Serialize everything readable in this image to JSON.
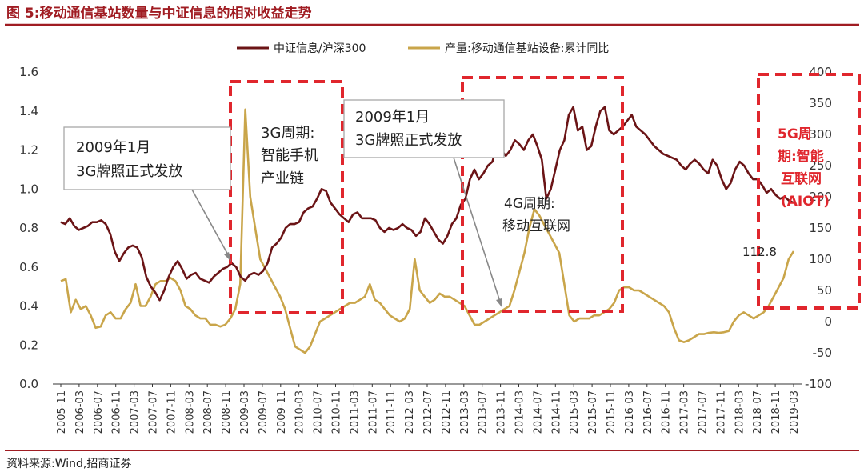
{
  "figure": {
    "title": "图 5:移动通信基站数量与中证信息的相对收益走势",
    "source": "资料来源:Wind,招商证券"
  },
  "colors": {
    "title": "#a01c22",
    "rule": "#a01c22",
    "series1": "#6b1416",
    "series2": "#c9a54a",
    "box": "#e0262d",
    "annotation_text": "#222222",
    "tick_text": "#333333",
    "label_red": "#e0262d"
  },
  "chart_data": {
    "type": "line",
    "title": "移动通信基站数量与中证信息的相对收益走势",
    "legend_position": "top",
    "y_left_range": [
      0.0,
      1.6
    ],
    "y_left_ticks": [
      "0.0",
      "0.2",
      "0.4",
      "0.6",
      "0.8",
      "1.0",
      "1.2",
      "1.4",
      "1.6"
    ],
    "y_right_range": [
      -100,
      400
    ],
    "y_right_ticks": [
      "-100",
      "-50",
      "0",
      "50",
      "100",
      "150",
      "200",
      "250",
      "300",
      "350",
      "400"
    ],
    "x_tick_labels": [
      "2005-11",
      "2006-03",
      "2006-07",
      "2006-11",
      "2007-03",
      "2007-07",
      "2007-11",
      "2008-03",
      "2008-07",
      "2008-11",
      "2009-03",
      "2009-07",
      "2009-11",
      "2010-03",
      "2010-07",
      "2010-11",
      "2011-03",
      "2011-07",
      "2011-11",
      "2012-03",
      "2012-07",
      "2012-11",
      "2013-03",
      "2013-07",
      "2013-11",
      "2014-03",
      "2014-07",
      "2014-11",
      "2015-03",
      "2015-07",
      "2015-11",
      "2016-03",
      "2016-07",
      "2016-11",
      "2017-03",
      "2017-07",
      "2017-11",
      "2018-03",
      "2018-07",
      "2018-11",
      "2019-03"
    ],
    "series": [
      {
        "name": "中证信息/沪深300",
        "axis": "left",
        "values": [
          0.83,
          0.82,
          0.85,
          0.81,
          0.79,
          0.8,
          0.81,
          0.83,
          0.83,
          0.84,
          0.82,
          0.77,
          0.68,
          0.63,
          0.67,
          0.7,
          0.71,
          0.7,
          0.65,
          0.55,
          0.5,
          0.47,
          0.43,
          0.48,
          0.55,
          0.6,
          0.63,
          0.59,
          0.54,
          0.56,
          0.57,
          0.54,
          0.53,
          0.52,
          0.55,
          0.57,
          0.59,
          0.6,
          0.62,
          0.6,
          0.55,
          0.53,
          0.56,
          0.57,
          0.56,
          0.58,
          0.62,
          0.7,
          0.72,
          0.75,
          0.8,
          0.82,
          0.82,
          0.83,
          0.88,
          0.9,
          0.91,
          0.95,
          1.0,
          0.99,
          0.93,
          0.9,
          0.87,
          0.85,
          0.83,
          0.87,
          0.88,
          0.85,
          0.85,
          0.85,
          0.84,
          0.8,
          0.78,
          0.8,
          0.79,
          0.8,
          0.82,
          0.8,
          0.79,
          0.76,
          0.78,
          0.85,
          0.82,
          0.78,
          0.74,
          0.72,
          0.76,
          0.82,
          0.85,
          0.92,
          0.95,
          1.05,
          1.1,
          1.05,
          1.08,
          1.12,
          1.14,
          1.22,
          1.2,
          1.17,
          1.2,
          1.25,
          1.23,
          1.2,
          1.25,
          1.28,
          1.22,
          1.15,
          0.95,
          1.0,
          1.1,
          1.2,
          1.25,
          1.38,
          1.42,
          1.3,
          1.32,
          1.2,
          1.22,
          1.32,
          1.4,
          1.42,
          1.3,
          1.28,
          1.3,
          1.32,
          1.35,
          1.38,
          1.32,
          1.3,
          1.28,
          1.25,
          1.22,
          1.2,
          1.18,
          1.17,
          1.16,
          1.15,
          1.12,
          1.1,
          1.13,
          1.15,
          1.13,
          1.1,
          1.08,
          1.15,
          1.12,
          1.05,
          1.0,
          1.03,
          1.1,
          1.14,
          1.12,
          1.08,
          1.05,
          1.05,
          1.02,
          0.98,
          1.0,
          0.97,
          0.95,
          0.96,
          0.94,
          0.93
        ]
      },
      {
        "name": "产量:移动通信基站设备:累计同比",
        "axis": "right",
        "values": [
          65,
          68,
          15,
          35,
          20,
          25,
          10,
          -10,
          -8,
          10,
          15,
          5,
          5,
          20,
          30,
          60,
          25,
          25,
          40,
          60,
          65,
          65,
          70,
          65,
          50,
          25,
          20,
          10,
          5,
          5,
          -5,
          -5,
          -8,
          -5,
          5,
          20,
          60,
          340,
          200,
          150,
          100,
          85,
          70,
          55,
          40,
          20,
          -10,
          -40,
          -45,
          -50,
          -40,
          -20,
          0,
          5,
          10,
          15,
          20,
          25,
          30,
          30,
          35,
          40,
          60,
          35,
          30,
          20,
          10,
          5,
          0,
          5,
          20,
          100,
          50,
          40,
          30,
          35,
          45,
          40,
          40,
          35,
          30,
          25,
          10,
          -5,
          -5,
          0,
          5,
          10,
          15,
          20,
          25,
          50,
          80,
          110,
          150,
          180,
          170,
          155,
          140,
          125,
          110,
          60,
          10,
          0,
          5,
          5,
          5,
          10,
          10,
          15,
          20,
          30,
          50,
          55,
          55,
          50,
          50,
          45,
          40,
          35,
          30,
          25,
          15,
          -10,
          -30,
          -33,
          -30,
          -25,
          -20,
          -20,
          -18,
          -17,
          -18,
          -17,
          -15,
          0,
          10,
          15,
          10,
          5,
          10,
          15,
          25,
          40,
          55,
          70,
          100,
          112.8
        ]
      }
    ],
    "annotations": [
      {
        "id": "a1",
        "lines": [
          "2009年1月",
          "3G牌照正式发放"
        ]
      },
      {
        "id": "a2",
        "lines": [
          "3G周期:",
          "智能手机",
          "产业链"
        ]
      },
      {
        "id": "a3",
        "lines": [
          "2009年1月",
          "3G牌照正式发放"
        ]
      },
      {
        "id": "a4",
        "lines": [
          "4G周期:",
          "移动互联网"
        ]
      },
      {
        "id": "a5",
        "lines": [
          "5G周",
          "期:智能",
          "互联网",
          "(AIOT)"
        ]
      },
      {
        "id": "a6",
        "lines": [
          "112.8"
        ]
      }
    ]
  }
}
